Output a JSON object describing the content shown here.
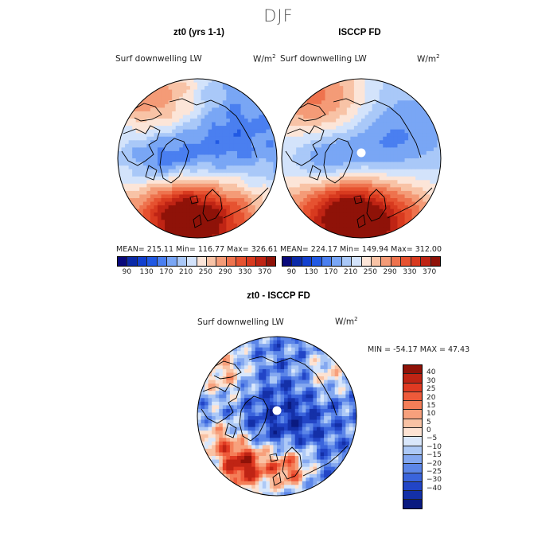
{
  "figure": {
    "title": "DJF"
  },
  "chart_data": [
    {
      "type": "heatmap",
      "projection": "north-polar-stereographic",
      "title": "zt0 (yrs 1-1)",
      "variable": "Surf downwelling LW",
      "units_base": "W/m",
      "units_exp": "2",
      "stats": {
        "text": "MEAN= 215.11   Min= 116.77   Max= 326.61",
        "mean": 215.11,
        "min": 116.77,
        "max": 326.61
      },
      "colorbar": {
        "orientation": "horizontal",
        "levels": [
          70,
          90,
          110,
          130,
          150,
          170,
          190,
          210,
          230,
          250,
          270,
          290,
          310,
          330,
          350,
          370,
          390
        ],
        "tick_labels": [
          "90",
          "130",
          "170",
          "210",
          "250",
          "290",
          "330",
          "370"
        ],
        "colors": [
          "#08087a",
          "#0b2aa8",
          "#1240cf",
          "#2159e3",
          "#4a7ff0",
          "#79a6f5",
          "#a9c8f8",
          "#d3e3fb",
          "#fce5d8",
          "#f8c3a6",
          "#f49b77",
          "#ee734e",
          "#e65230",
          "#d83a1f",
          "#bf2414",
          "#8f1208"
        ]
      },
      "field_description": "warm (high) values over North Atlantic, Europe and North Pacific; cold (low) over Arctic Ocean, Greenland, Siberia and Canada"
    },
    {
      "type": "heatmap",
      "projection": "north-polar-stereographic",
      "title": "ISCCP FD",
      "variable": "Surf downwelling LW",
      "units_base": "W/m",
      "units_exp": "2",
      "stats": {
        "text": "MEAN= 224.17   Min= 149.94   Max= 312.00",
        "mean": 224.17,
        "min": 149.94,
        "max": 312.0
      },
      "colorbar": {
        "orientation": "horizontal",
        "levels": [
          70,
          90,
          110,
          130,
          150,
          170,
          190,
          210,
          230,
          250,
          270,
          290,
          310,
          330,
          350,
          370,
          390
        ],
        "tick_labels": [
          "90",
          "130",
          "170",
          "210",
          "250",
          "290",
          "330",
          "370"
        ],
        "colors": [
          "#08087a",
          "#0b2aa8",
          "#1240cf",
          "#2159e3",
          "#4a7ff0",
          "#79a6f5",
          "#a9c8f8",
          "#d3e3fb",
          "#fce5d8",
          "#f8c3a6",
          "#f49b77",
          "#ee734e",
          "#e65230",
          "#d83a1f",
          "#bf2414",
          "#8f1208"
        ]
      },
      "field_description": "similar pattern with smoother gradients; missing data at the pole"
    },
    {
      "type": "heatmap",
      "projection": "north-polar-stereographic",
      "title": "zt0 - ISCCP FD",
      "variable": "Surf downwelling LW",
      "units_base": "W/m",
      "units_exp": "2",
      "stats": {
        "text": "MIN = -54.17 MAX =  47.43",
        "min": -54.17,
        "max": 47.43
      },
      "colorbar": {
        "orientation": "vertical",
        "levels": [
          -45,
          -40,
          -30,
          -25,
          -20,
          -15,
          -10,
          -5,
          0,
          5,
          10,
          15,
          20,
          25,
          30,
          40,
          45
        ],
        "tick_labels": [
          "40",
          "30",
          "25",
          "20",
          "15",
          "10",
          "5",
          "0",
          "−5",
          "−10",
          "−15",
          "−20",
          "−25",
          "−30",
          "−40"
        ],
        "colors_top_to_bottom": [
          "#8f1208",
          "#bf2414",
          "#e03a22",
          "#ee5a3a",
          "#f47e58",
          "#f7a07c",
          "#f9c2a4",
          "#fde3d3",
          "#d9e7fb",
          "#adc9f6",
          "#84a8f0",
          "#5c86e8",
          "#3a64dc",
          "#2245c6",
          "#1430a8",
          "#0a1a80"
        ]
      },
      "field_description": "mostly negative (blue) over the Arctic, Eurasia and North America; positive (red) over the North Atlantic and Scandinavia"
    }
  ]
}
